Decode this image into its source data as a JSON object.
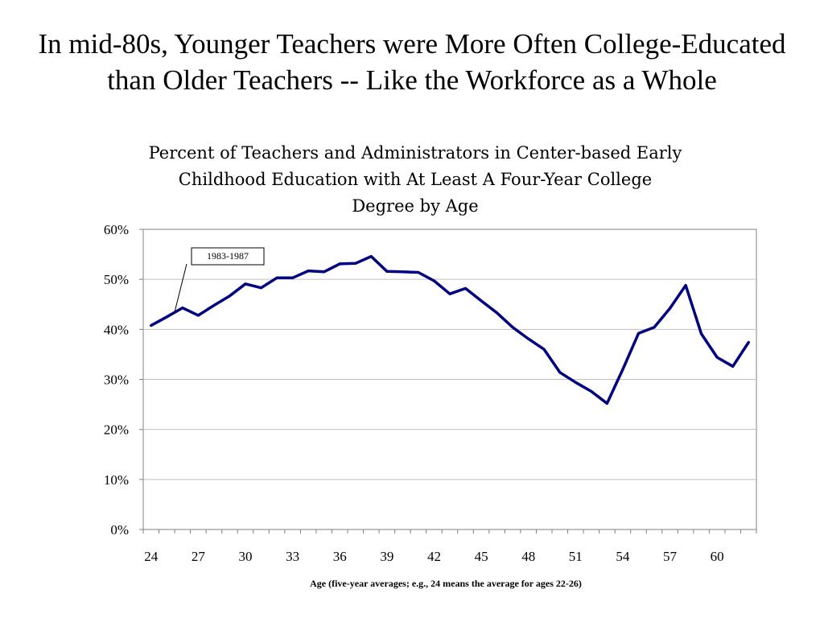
{
  "slide": {
    "title": "In mid-80s, Younger Teachers were More Often College-Educated than Older Teachers -- Like the Workforce as a Whole"
  },
  "chart_data": {
    "type": "line",
    "title": "Percent of Teachers and Administrators in Center-based Early Childhood Education with At Least A Four-Year College Degree by Age",
    "xlabel": "Age (five-year averages; e.g., 24 means the average for ages 22-26)",
    "ylabel": "",
    "x": [
      24,
      25,
      26,
      27,
      28,
      29,
      30,
      31,
      32,
      33,
      34,
      35,
      36,
      37,
      38,
      39,
      40,
      41,
      42,
      43,
      44,
      45,
      46,
      47,
      48,
      49,
      50,
      51,
      52,
      53,
      54,
      55,
      56,
      57,
      58,
      59,
      60,
      61,
      62
    ],
    "series": [
      {
        "name": "1983-1987",
        "color": "#000080",
        "values": [
          40.8,
          42.5,
          44.3,
          42.8,
          44.8,
          46.7,
          49.1,
          48.3,
          50.3,
          50.3,
          51.7,
          51.5,
          53.1,
          53.2,
          54.6,
          51.6,
          51.5,
          51.4,
          49.7,
          47.1,
          48.2,
          45.7,
          43.3,
          40.4,
          38.1,
          36.0,
          31.4,
          29.4,
          27.6,
          25.2,
          32.0,
          39.2,
          40.4,
          44.2,
          48.8,
          39.1,
          34.4,
          32.6,
          37.4
        ]
      }
    ],
    "xlim": [
      24,
      62
    ],
    "ylim": [
      0,
      60
    ],
    "yticks": [
      0,
      10,
      20,
      30,
      40,
      50,
      60
    ],
    "ytick_labels": [
      "0%",
      "10%",
      "20%",
      "30%",
      "40%",
      "50%",
      "60%"
    ],
    "xticks": [
      24,
      27,
      30,
      33,
      36,
      39,
      42,
      45,
      48,
      51,
      54,
      57,
      60
    ],
    "xtick_labels": [
      "24",
      "27",
      "30",
      "33",
      "36",
      "39",
      "42",
      "45",
      "48",
      "51",
      "54",
      "57",
      "60"
    ],
    "grid": true,
    "annotation": {
      "text": "1983-1987",
      "x": 25.5,
      "y": 43.5
    },
    "colors": {
      "line": "#000080",
      "gridline": "#c0c0c0",
      "frame": "#808080"
    }
  }
}
